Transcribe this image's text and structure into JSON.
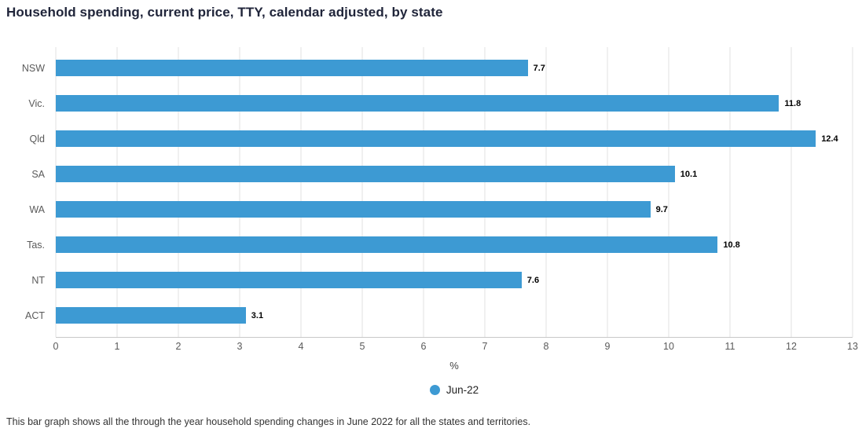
{
  "title": "Household spending, current price, TTY, calendar adjusted, by state",
  "footer_note": "This bar graph shows all the through the year household spending changes in June 2022 for all the states and territories.",
  "legend": {
    "label": "Jun-22",
    "marker_color": "#3d9ad3"
  },
  "colors": {
    "bar": "#3d9ad3",
    "grid": "#e0e0e0",
    "axis": "#c8c8c8",
    "title": "#20253a",
    "tick_text": "#5a5a5a"
  },
  "chart_data": {
    "type": "bar",
    "orientation": "horizontal",
    "title": "Household spending, current price, TTY, calendar adjusted, by state",
    "categories": [
      "NSW",
      "Vic.",
      "Qld",
      "SA",
      "WA",
      "Tas.",
      "NT",
      "ACT"
    ],
    "series": [
      {
        "name": "Jun-22",
        "values": [
          7.7,
          11.8,
          12.4,
          10.1,
          9.7,
          10.8,
          7.6,
          3.1
        ]
      }
    ],
    "values": [
      7.7,
      11.8,
      12.4,
      10.1,
      9.7,
      10.8,
      7.6,
      3.1
    ],
    "data_labels": [
      "7.7",
      "11.8",
      "12.4",
      "10.1",
      "9.7",
      "10.8",
      "7.6",
      "3.1"
    ],
    "xlabel": "%",
    "ylabel": "",
    "xlim": [
      0,
      13
    ],
    "xticks": [
      0,
      1,
      2,
      3,
      4,
      5,
      6,
      7,
      8,
      9,
      10,
      11,
      12,
      13
    ],
    "grid": true,
    "legend_position": "bottom"
  }
}
